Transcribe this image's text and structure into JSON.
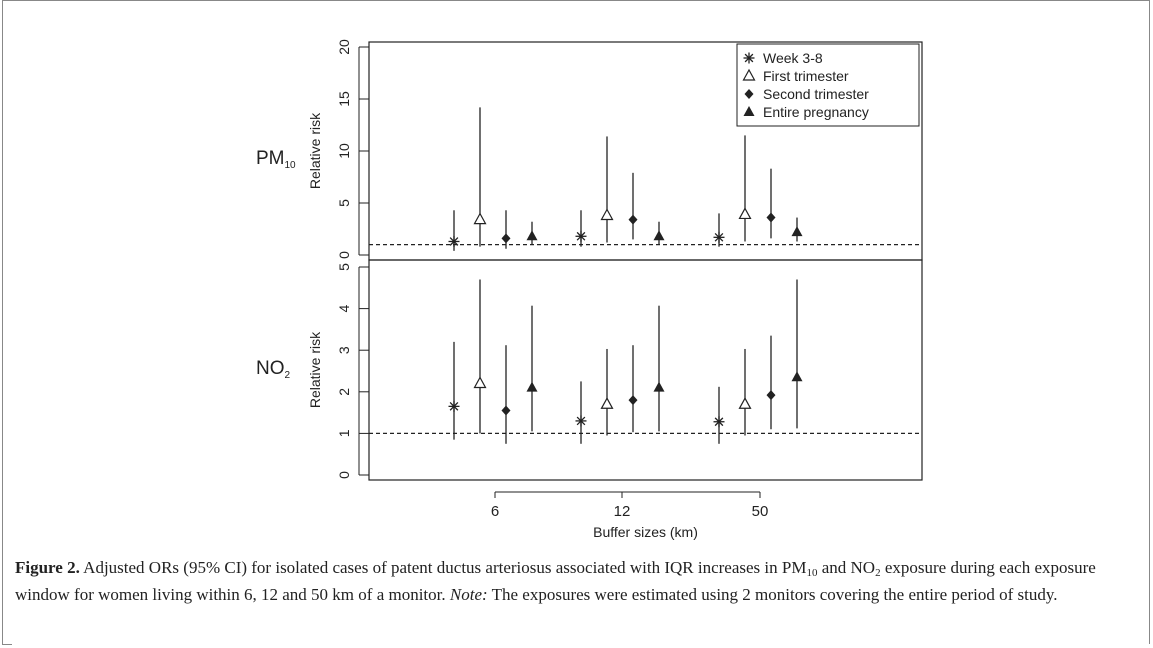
{
  "chart_data": [
    {
      "type": "scatter",
      "panel_label": "PM10",
      "ylabel": "Relative risk",
      "ylim": [
        0,
        20
      ],
      "yticks": [
        "0",
        "5",
        "10",
        "15",
        "20"
      ],
      "reference_line": 1,
      "categories": [
        "6",
        "12",
        "50"
      ],
      "xlabel": "",
      "legend_position": "top-right",
      "series": [
        {
          "name": "Week 3-8",
          "marker": "asterisk",
          "points": [
            {
              "x": "6",
              "estimate": 1.3,
              "lower": 0.4,
              "upper": 4.3
            },
            {
              "x": "12",
              "estimate": 1.8,
              "lower": 0.8,
              "upper": 4.3
            },
            {
              "x": "50",
              "estimate": 1.7,
              "lower": 0.8,
              "upper": 4.0
            }
          ]
        },
        {
          "name": "First trimester",
          "marker": "open-triangle",
          "points": [
            {
              "x": "6",
              "estimate": 3.4,
              "lower": 0.8,
              "upper": 14.2
            },
            {
              "x": "12",
              "estimate": 3.8,
              "lower": 1.2,
              "upper": 11.4
            },
            {
              "x": "50",
              "estimate": 3.9,
              "lower": 1.3,
              "upper": 11.5
            }
          ]
        },
        {
          "name": "Second trimester",
          "marker": "filled-diamond",
          "points": [
            {
              "x": "6",
              "estimate": 1.6,
              "lower": 0.6,
              "upper": 4.3
            },
            {
              "x": "12",
              "estimate": 3.4,
              "lower": 1.5,
              "upper": 7.9
            },
            {
              "x": "50",
              "estimate": 3.6,
              "lower": 1.6,
              "upper": 8.3
            }
          ]
        },
        {
          "name": "Entire pregnancy",
          "marker": "filled-triangle",
          "points": [
            {
              "x": "6",
              "estimate": 1.8,
              "lower": 1.0,
              "upper": 3.2
            },
            {
              "x": "12",
              "estimate": 1.8,
              "lower": 1.0,
              "upper": 3.2
            },
            {
              "x": "50",
              "estimate": 2.2,
              "lower": 1.3,
              "upper": 3.6
            }
          ]
        }
      ]
    },
    {
      "type": "scatter",
      "panel_label": "NO2",
      "ylabel": "Relative risk",
      "ylim": [
        0,
        5
      ],
      "yticks": [
        "0",
        "1",
        "2",
        "3",
        "4",
        "5"
      ],
      "reference_line": 1,
      "categories": [
        "6",
        "12",
        "50"
      ],
      "xlabel": "Buffer sizes (km)",
      "series": [
        {
          "name": "Week 3-8",
          "marker": "asterisk",
          "points": [
            {
              "x": "6",
              "estimate": 1.65,
              "lower": 0.85,
              "upper": 3.2
            },
            {
              "x": "12",
              "estimate": 1.3,
              "lower": 0.75,
              "upper": 2.25
            },
            {
              "x": "50",
              "estimate": 1.28,
              "lower": 0.75,
              "upper": 2.12
            }
          ]
        },
        {
          "name": "First trimester",
          "marker": "open-triangle",
          "points": [
            {
              "x": "6",
              "estimate": 2.2,
              "lower": 1.0,
              "upper": 4.7
            },
            {
              "x": "12",
              "estimate": 1.7,
              "lower": 0.95,
              "upper": 3.03
            },
            {
              "x": "50",
              "estimate": 1.7,
              "lower": 0.95,
              "upper": 3.03
            }
          ]
        },
        {
          "name": "Second trimester",
          "marker": "filled-diamond",
          "points": [
            {
              "x": "6",
              "estimate": 1.55,
              "lower": 0.75,
              "upper": 3.12
            },
            {
              "x": "12",
              "estimate": 1.8,
              "lower": 1.03,
              "upper": 3.12
            },
            {
              "x": "50",
              "estimate": 1.92,
              "lower": 1.1,
              "upper": 3.35
            }
          ]
        },
        {
          "name": "Entire pregnancy",
          "marker": "filled-triangle",
          "points": [
            {
              "x": "6",
              "estimate": 2.1,
              "lower": 1.05,
              "upper": 4.07
            },
            {
              "x": "12",
              "estimate": 2.1,
              "lower": 1.05,
              "upper": 4.07
            },
            {
              "x": "50",
              "estimate": 2.35,
              "lower": 1.12,
              "upper": 4.7
            }
          ]
        }
      ]
    }
  ],
  "panel_labels": {
    "pm10_main": "PM",
    "pm10_sub": "10",
    "no2_main": "NO",
    "no2_sub": "2"
  },
  "caption": {
    "figure_label": "Figure 2.",
    "text_part1": " Adjusted ORs (95% CI) for isolated cases of patent ductus arteriosus associated with IQR increases in PM",
    "sub1": "10",
    "text_part2": " and NO",
    "sub2": "2",
    "text_part3": " exposure during each exposure window for women living within 6, 12 and 50 km of a monitor. ",
    "note_label": "Note:",
    "text_part4": " The exposures were estimated using 2 monitors covering the entire period of study."
  }
}
